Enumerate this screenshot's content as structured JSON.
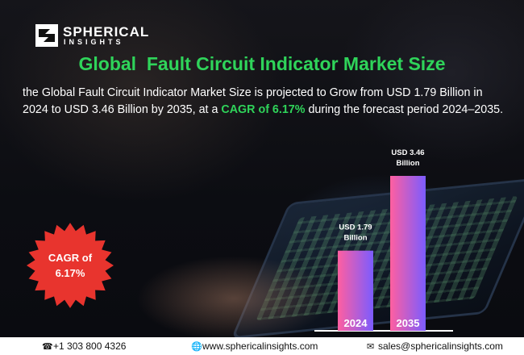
{
  "brand": {
    "name": "SPHERICAL",
    "sub": "INSIGHTS"
  },
  "title": "Global  Fault Circuit Indicator Market Size",
  "description": {
    "pre": "the Global Fault Circuit Indicator Market Size is projected to Grow from USD 1.79 Billion in 2024 to USD 3.46 Billion by 2035, at a ",
    "highlight": "CAGR of 6.17%",
    "post": " during the forecast period 2024–2035."
  },
  "cagr_badge": {
    "line1": "CAGR of",
    "line2": "6.17%",
    "color": "#e8342e"
  },
  "chart_data": {
    "type": "bar",
    "categories": [
      "2024",
      "2035"
    ],
    "values": [
      1.79,
      3.46
    ],
    "value_labels": [
      [
        "USD 1.79",
        "Billion"
      ],
      [
        "USD 3.46",
        "Billion"
      ]
    ],
    "ylim": [
      0,
      3.46
    ],
    "unit": "USD Billion",
    "grid": false,
    "bar_gradient": [
      "#ff5fa0",
      "#7b5cff"
    ]
  },
  "footer": {
    "phone": "+1 303 800 4326",
    "website": "www.sphericalinsights.com",
    "email": "sales@sphericalinsights.com",
    "icons": [
      "phone-icon",
      "globe-icon",
      "mail-icon"
    ]
  },
  "colors": {
    "accent_green": "#2fd45a",
    "badge_red": "#e8342e"
  }
}
